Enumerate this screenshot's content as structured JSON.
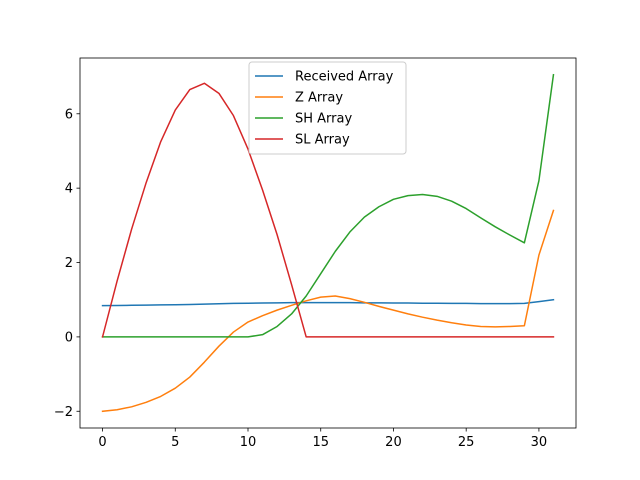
{
  "chart_data": {
    "type": "line",
    "title": "",
    "xlabel": "",
    "ylabel": "",
    "xlim": [
      -1.55,
      32.55
    ],
    "ylim": [
      -2.45,
      7.5
    ],
    "xticks": [
      0,
      5,
      10,
      15,
      20,
      25,
      30
    ],
    "yticks": [
      -2,
      0,
      2,
      4,
      6
    ],
    "xtick_labels": [
      "0",
      "5",
      "10",
      "15",
      "20",
      "25",
      "30"
    ],
    "ytick_labels": [
      "−2",
      "0",
      "2",
      "4",
      "6"
    ],
    "grid": false,
    "legend": {
      "placement": "upper center"
    },
    "x": [
      0,
      1,
      2,
      3,
      4,
      5,
      6,
      7,
      8,
      9,
      10,
      11,
      12,
      13,
      14,
      15,
      16,
      17,
      18,
      19,
      20,
      21,
      22,
      23,
      24,
      25,
      26,
      27,
      28,
      29,
      30,
      31
    ],
    "series": [
      {
        "name": "Received Array",
        "color": "#1f77b4",
        "values": [
          0.84,
          0.845,
          0.85,
          0.855,
          0.86,
          0.865,
          0.87,
          0.88,
          0.89,
          0.9,
          0.905,
          0.91,
          0.915,
          0.92,
          0.92,
          0.92,
          0.92,
          0.92,
          0.915,
          0.915,
          0.91,
          0.91,
          0.905,
          0.905,
          0.9,
          0.9,
          0.895,
          0.895,
          0.895,
          0.9,
          0.95,
          1.0
        ]
      },
      {
        "name": "Z Array",
        "color": "#ff7f0e",
        "values": [
          -2.0,
          -1.96,
          -1.88,
          -1.76,
          -1.6,
          -1.38,
          -1.08,
          -0.68,
          -0.25,
          0.13,
          0.4,
          0.57,
          0.72,
          0.85,
          0.97,
          1.07,
          1.1,
          1.03,
          0.93,
          0.82,
          0.72,
          0.62,
          0.53,
          0.45,
          0.38,
          0.32,
          0.28,
          0.27,
          0.28,
          0.3,
          2.2,
          3.4
        ]
      },
      {
        "name": "SH Array",
        "color": "#2ca02c",
        "values": [
          0,
          0,
          0,
          0,
          0,
          0,
          0,
          0,
          0,
          0,
          0,
          0.06,
          0.28,
          0.62,
          1.1,
          1.7,
          2.3,
          2.82,
          3.22,
          3.5,
          3.7,
          3.8,
          3.83,
          3.78,
          3.65,
          3.45,
          3.2,
          2.96,
          2.74,
          2.53,
          4.2,
          7.05
        ]
      },
      {
        "name": "SL Array",
        "color": "#d62728",
        "values": [
          0,
          1.5,
          2.9,
          4.15,
          5.25,
          6.1,
          6.65,
          6.82,
          6.55,
          5.95,
          5.05,
          3.95,
          2.75,
          1.4,
          0,
          0,
          0,
          0,
          0,
          0,
          0,
          0,
          0,
          0,
          0,
          0,
          0,
          0,
          0,
          0,
          0,
          0
        ]
      }
    ]
  }
}
